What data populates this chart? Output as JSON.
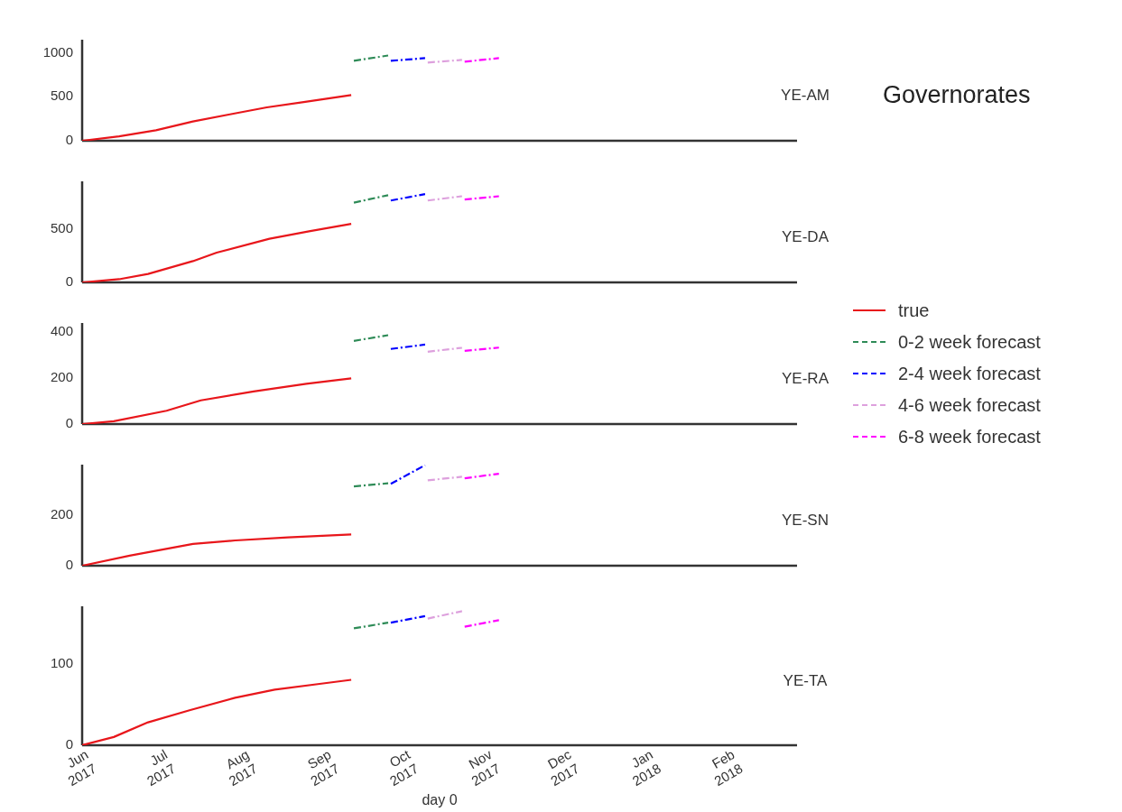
{
  "chart_data": [
    {
      "type": "line",
      "title": "YE-AM",
      "annotations": [
        "Governorates"
      ],
      "xlim": [
        "2017-06-01",
        "2018-02-27"
      ],
      "ylim": [
        0,
        1150
      ],
      "yticks": [
        0,
        500,
        1000
      ],
      "tick_labels": "y",
      "grid": false,
      "series": [
        {
          "color": "#e8161b",
          "line_style": "solid",
          "x": [
            "2017-06-01",
            "2017-06-15",
            "2017-06-29",
            "2017-07-13",
            "2017-07-27",
            "2017-08-10",
            "2017-08-24",
            "2017-09-11"
          ],
          "values": [
            0,
            50,
            120,
            220,
            300,
            380,
            440,
            520
          ]
        },
        {
          "color": "#2e8b57",
          "line_style": "dashed",
          "x": [
            "2017-09-12",
            "2017-09-25"
          ],
          "values": [
            910,
            970
          ]
        },
        {
          "color": "#0000ff",
          "line_style": "dashed",
          "x": [
            "2017-09-26",
            "2017-10-09"
          ],
          "values": [
            910,
            940
          ]
        },
        {
          "color": "#dda0dd",
          "line_style": "dashed",
          "x": [
            "2017-10-10",
            "2017-10-23"
          ],
          "values": [
            890,
            920
          ]
        },
        {
          "color": "#ff00ff",
          "line_style": "dashed",
          "x": [
            "2017-10-24",
            "2017-11-06"
          ],
          "values": [
            900,
            940
          ]
        }
      ]
    },
    {
      "type": "line",
      "title": "YE-DA",
      "xlim": [
        "2017-06-01",
        "2018-02-27"
      ],
      "ylim": [
        0,
        950
      ],
      "yticks": [
        0,
        500
      ],
      "tick_labels": "y",
      "grid": false,
      "series": [
        {
          "color": "#e8161b",
          "line_style": "solid",
          "x": [
            "2017-06-01",
            "2017-06-15",
            "2017-06-26",
            "2017-07-13",
            "2017-07-22",
            "2017-08-11",
            "2017-08-26",
            "2017-09-11"
          ],
          "values": [
            0,
            30,
            80,
            200,
            280,
            410,
            480,
            550
          ]
        },
        {
          "color": "#2e8b57",
          "line_style": "dashed",
          "x": [
            "2017-09-12",
            "2017-09-25"
          ],
          "values": [
            750,
            820
          ]
        },
        {
          "color": "#0000ff",
          "line_style": "dashed",
          "x": [
            "2017-09-26",
            "2017-10-09"
          ],
          "values": [
            770,
            830
          ]
        },
        {
          "color": "#dda0dd",
          "line_style": "dashed",
          "x": [
            "2017-10-10",
            "2017-10-23"
          ],
          "values": [
            770,
            810
          ]
        },
        {
          "color": "#ff00ff",
          "line_style": "dashed",
          "x": [
            "2017-10-24",
            "2017-11-06"
          ],
          "values": [
            780,
            810
          ]
        }
      ]
    },
    {
      "type": "line",
      "title": "YE-RA",
      "legend": "right",
      "xlim": [
        "2017-06-01",
        "2018-02-27"
      ],
      "ylim": [
        0,
        440
      ],
      "yticks": [
        0,
        200,
        400
      ],
      "tick_labels": "y",
      "grid": false,
      "series": [
        {
          "name": "true",
          "color": "#e8161b",
          "line_style": "solid",
          "x": [
            "2017-06-01",
            "2017-06-13",
            "2017-07-03",
            "2017-07-16",
            "2017-08-05",
            "2017-08-25",
            "2017-09-11"
          ],
          "values": [
            0,
            12,
            58,
            103,
            142,
            175,
            199
          ]
        },
        {
          "name": "0-2 week forecast",
          "color": "#2e8b57",
          "line_style": "dashed",
          "x": [
            "2017-09-12",
            "2017-09-25"
          ],
          "values": [
            362,
            387
          ]
        },
        {
          "name": "2-4 week forecast",
          "color": "#0000ff",
          "line_style": "dashed",
          "x": [
            "2017-09-26",
            "2017-10-09"
          ],
          "values": [
            327,
            346
          ]
        },
        {
          "name": "4-6 week forecast",
          "color": "#dda0dd",
          "line_style": "dashed",
          "x": [
            "2017-10-10",
            "2017-10-23"
          ],
          "values": [
            315,
            332
          ]
        },
        {
          "name": "6-8 week forecast",
          "color": "#ff00ff",
          "line_style": "dashed",
          "x": [
            "2017-10-24",
            "2017-11-06"
          ],
          "values": [
            319,
            333
          ]
        }
      ]
    },
    {
      "type": "line",
      "title": "YE-SN",
      "xlim": [
        "2017-06-01",
        "2018-02-27"
      ],
      "ylim": [
        0,
        400
      ],
      "yticks": [
        0,
        200
      ],
      "tick_labels": "y",
      "grid": false,
      "series": [
        {
          "color": "#e8161b",
          "line_style": "solid",
          "x": [
            "2017-06-01",
            "2017-06-19",
            "2017-07-13",
            "2017-07-29",
            "2017-08-18",
            "2017-09-11"
          ],
          "values": [
            0,
            40,
            86,
            100,
            112,
            124
          ]
        },
        {
          "color": "#2e8b57",
          "line_style": "dashed",
          "x": [
            "2017-09-12",
            "2017-09-25"
          ],
          "values": [
            314,
            326
          ]
        },
        {
          "color": "#0000ff",
          "line_style": "dashed",
          "x": [
            "2017-09-26",
            "2017-10-09"
          ],
          "values": [
            324,
            398
          ]
        },
        {
          "color": "#dda0dd",
          "line_style": "dashed",
          "x": [
            "2017-10-10",
            "2017-10-23"
          ],
          "values": [
            338,
            352
          ]
        },
        {
          "color": "#ff00ff",
          "line_style": "dashed",
          "x": [
            "2017-10-24",
            "2017-11-06"
          ],
          "values": [
            346,
            364
          ]
        }
      ]
    },
    {
      "type": "line",
      "title": "YE-TA",
      "xlabel": "day 0",
      "xlim": [
        "2017-06-01",
        "2018-02-27"
      ],
      "xticks": [
        {
          "value": "2017-06-01",
          "label": "Jun\n2017"
        },
        {
          "value": "2017-07-01",
          "label": "Jul\n2017"
        },
        {
          "value": "2017-08-01",
          "label": "Aug\n2017"
        },
        {
          "value": "2017-09-01",
          "label": "Sep\n2017"
        },
        {
          "value": "2017-10-01",
          "label": "Oct\n2017"
        },
        {
          "value": "2017-11-01",
          "label": "Nov\n2017"
        },
        {
          "value": "2017-12-01",
          "label": "Dec\n2017"
        },
        {
          "value": "2018-01-01",
          "label": "Jan\n2018"
        },
        {
          "value": "2018-02-01",
          "label": "Feb\n2018"
        }
      ],
      "ylim": [
        0,
        170
      ],
      "yticks": [
        0,
        100
      ],
      "grid": false,
      "series": [
        {
          "color": "#e8161b",
          "line_style": "solid",
          "x": [
            "2017-06-01",
            "2017-06-13",
            "2017-06-26",
            "2017-07-12",
            "2017-07-29",
            "2017-08-13",
            "2017-08-30",
            "2017-09-11"
          ],
          "values": [
            0,
            10,
            28,
            43,
            58,
            68,
            75,
            80
          ]
        },
        {
          "color": "#2e8b57",
          "line_style": "dashed",
          "x": [
            "2017-09-12",
            "2017-09-25"
          ],
          "values": [
            143,
            150
          ]
        },
        {
          "color": "#0000ff",
          "line_style": "dashed",
          "x": [
            "2017-09-26",
            "2017-10-09"
          ],
          "values": [
            150,
            158
          ]
        },
        {
          "color": "#dda0dd",
          "line_style": "dashed",
          "x": [
            "2017-10-10",
            "2017-10-23"
          ],
          "values": [
            155,
            164
          ]
        },
        {
          "color": "#ff00ff",
          "line_style": "dashed",
          "x": [
            "2017-10-24",
            "2017-11-06"
          ],
          "values": [
            145,
            153
          ]
        }
      ]
    }
  ]
}
